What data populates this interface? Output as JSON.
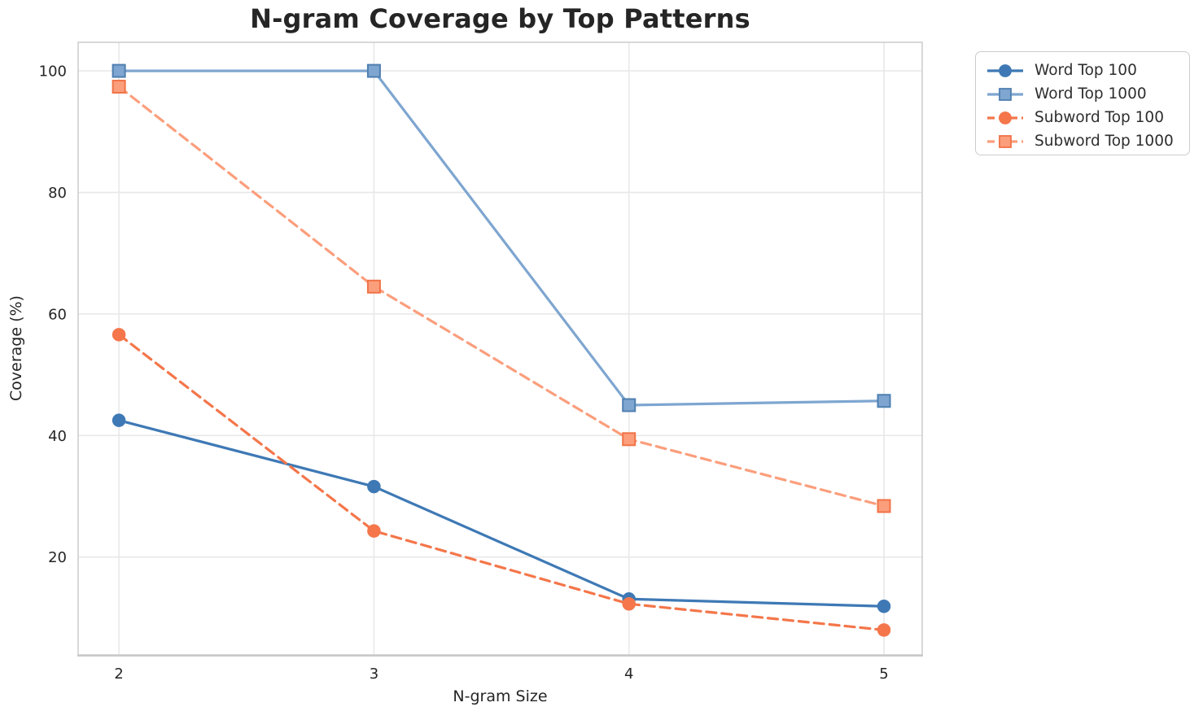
{
  "chart_data": {
    "type": "line",
    "title": "N-gram Coverage by Top Patterns",
    "xlabel": "N-gram Size",
    "ylabel": "Coverage (%)",
    "x": [
      2,
      3,
      4,
      5
    ],
    "xticks": [
      2,
      3,
      4,
      5
    ],
    "yticks": [
      20,
      40,
      60,
      80,
      100
    ],
    "xlim": [
      1.84,
      5.15
    ],
    "ylim": [
      3.9,
      104.7
    ],
    "grid": true,
    "legend_position": "outside-top-right",
    "series": [
      {
        "name": "Word Top 100",
        "values": [
          42.5,
          31.6,
          13.1,
          11.9
        ],
        "color": "#3E79B5",
        "marker": "circle",
        "dash": "solid",
        "marker_edge": "#3E79B5"
      },
      {
        "name": "Word Top 1000",
        "values": [
          100.0,
          100.0,
          45.0,
          45.7
        ],
        "color": "#7EA6D0",
        "marker": "square",
        "dash": "solid",
        "marker_edge": "#4F7FB0"
      },
      {
        "name": "Subword Top 100",
        "values": [
          56.6,
          24.3,
          12.3,
          8.0
        ],
        "color": "#F4764A",
        "marker": "circle",
        "dash": "dashed",
        "marker_edge": "#F4764A"
      },
      {
        "name": "Subword Top 1000",
        "values": [
          97.4,
          64.5,
          39.4,
          28.4
        ],
        "color": "#FB9E7C",
        "marker": "square",
        "dash": "dashed",
        "marker_edge": "#F07347"
      }
    ],
    "style": {
      "grid_color": "#e8e8e8",
      "spine_color": "#cccccc",
      "tick_label_color": "#252525",
      "title_color": "#252525",
      "background": "#ffffff"
    }
  }
}
